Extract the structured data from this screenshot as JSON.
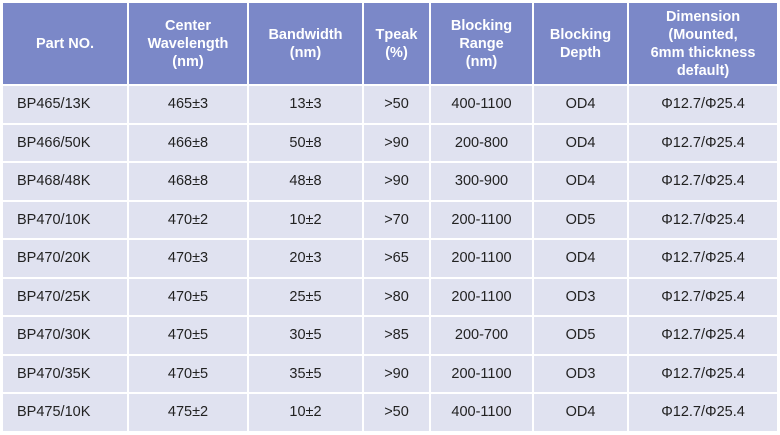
{
  "table": {
    "headers": [
      [
        "Part NO."
      ],
      [
        "Center",
        "Wavelength",
        "(nm)"
      ],
      [
        "Bandwidth",
        "(nm)"
      ],
      [
        "Tpeak",
        "(%)"
      ],
      [
        "Blocking",
        "Range",
        "(nm)"
      ],
      [
        "Blocking",
        "Depth"
      ],
      [
        "Dimension",
        "(Mounted,",
        "6mm thickness",
        "default)"
      ]
    ],
    "rows": [
      [
        "BP465/13K",
        "465±3",
        "13±3",
        ">50",
        "400-1100",
        "OD4",
        "Φ12.7/Φ25.4"
      ],
      [
        "BP466/50K",
        "466±8",
        "50±8",
        ">90",
        "200-800",
        "OD4",
        "Φ12.7/Φ25.4"
      ],
      [
        "BP468/48K",
        "468±8",
        "48±8",
        ">90",
        "300-900",
        "OD4",
        "Φ12.7/Φ25.4"
      ],
      [
        "BP470/10K",
        "470±2",
        "10±2",
        ">70",
        "200-1100",
        "OD5",
        "Φ12.7/Φ25.4"
      ],
      [
        "BP470/20K",
        "470±3",
        "20±3",
        ">65",
        "200-1100",
        "OD4",
        "Φ12.7/Φ25.4"
      ],
      [
        "BP470/25K",
        "470±5",
        "25±5",
        ">80",
        "200-1100",
        "OD3",
        "Φ12.7/Φ25.4"
      ],
      [
        "BP470/30K",
        "470±5",
        "30±5",
        ">85",
        "200-700",
        "OD5",
        "Φ12.7/Φ25.4"
      ],
      [
        "BP470/35K",
        "470±5",
        "35±5",
        ">90",
        "200-1100",
        "OD3",
        "Φ12.7/Φ25.4"
      ],
      [
        "BP475/10K",
        "475±2",
        "10±2",
        ">50",
        "400-1100",
        "OD4",
        "Φ12.7/Φ25.4"
      ]
    ],
    "colors": {
      "header_bg": "#7b88c8",
      "row_bg": "#e0e2f0"
    }
  }
}
